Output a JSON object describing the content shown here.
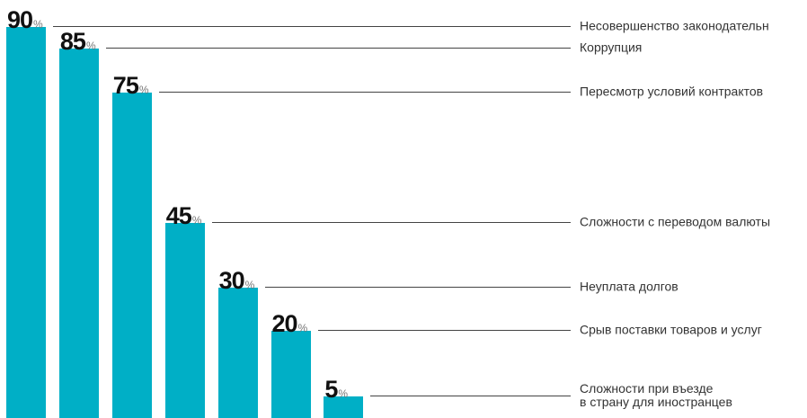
{
  "chart_data": {
    "type": "bar",
    "categories": [
      "Несовершенство законодательн",
      "Коррупция",
      "Пересмотр условий контрактов",
      "Сложности с переводом валюты",
      "Неуплата долгов",
      "Срыв поставки товаров и услуг",
      "Сложности при въезде\nв страну для иностранцев"
    ],
    "values": [
      90,
      85,
      75,
      45,
      30,
      20,
      5
    ],
    "unit": "%",
    "color": "#00afc6"
  }
}
